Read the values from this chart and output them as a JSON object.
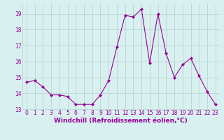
{
  "x": [
    0,
    1,
    2,
    3,
    4,
    5,
    6,
    7,
    8,
    9,
    10,
    11,
    12,
    13,
    14,
    15,
    16,
    17,
    18,
    19,
    20,
    21,
    22,
    23
  ],
  "y": [
    14.7,
    14.8,
    14.4,
    13.9,
    13.9,
    13.8,
    13.3,
    13.3,
    13.3,
    13.9,
    14.8,
    16.9,
    18.9,
    18.8,
    19.3,
    15.9,
    19.0,
    16.5,
    15.0,
    15.8,
    16.2,
    15.1,
    14.1,
    13.3
  ],
  "line_color": "#990099",
  "marker": "D",
  "marker_size": 2,
  "bg_color": "#d8f0f0",
  "grid_color": "#b8d4d4",
  "xlabel": "Windchill (Refroidissement éolien,°C)",
  "xlim_min": -0.5,
  "xlim_max": 23.5,
  "ylim_min": 13.0,
  "ylim_max": 19.6,
  "yticks": [
    13,
    14,
    15,
    16,
    17,
    18,
    19
  ],
  "xticks": [
    0,
    1,
    2,
    3,
    4,
    5,
    6,
    7,
    8,
    9,
    10,
    11,
    12,
    13,
    14,
    15,
    16,
    17,
    18,
    19,
    20,
    21,
    22,
    23
  ],
  "tick_fontsize": 5.5,
  "xlabel_fontsize": 6.5
}
